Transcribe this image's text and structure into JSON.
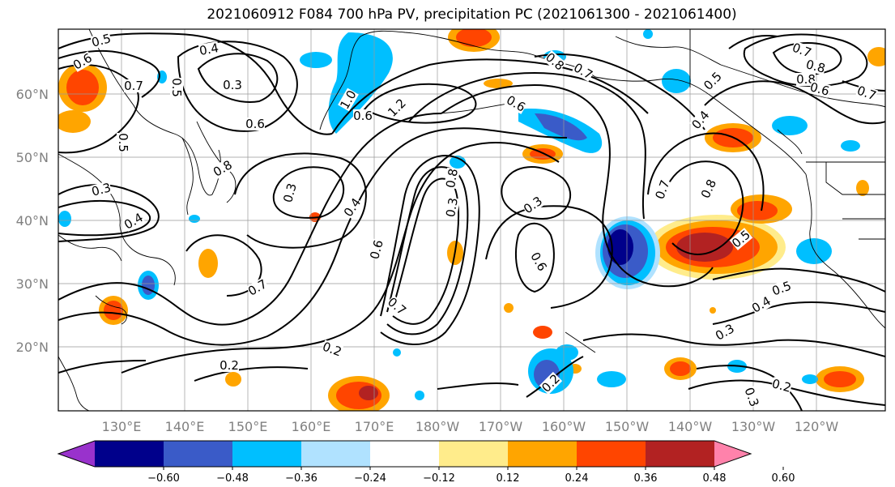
{
  "title": "2021060912 F084 700 hPa PV, precipitation PC (2021061300 - 2021061400)",
  "lat_labels": [
    "60°N",
    "50°N",
    "40°N",
    "30°N",
    "20°N"
  ],
  "lon_labels": [
    "130°E",
    "140°E",
    "150°E",
    "160°E",
    "170°E",
    "180°W",
    "170°W",
    "160°W",
    "150°W",
    "140°W",
    "130°W",
    "120°W"
  ],
  "colorbar": {
    "colors": [
      "#9932CC",
      "#00008B",
      "#3A5BC8",
      "#00BFFF",
      "#B0E2FF",
      "#FFFFFF",
      "#FFEC8B",
      "#FFA500",
      "#FF4500",
      "#B22222",
      "#FF82AB"
    ],
    "tick_labels": [
      "−0.60",
      "−0.48",
      "−0.36",
      "−0.24",
      "−0.12",
      "0.12",
      "0.24",
      "0.36",
      "0.48",
      "0.60"
    ]
  },
  "contour_labels": [
    "0.5",
    "0.6",
    "0.7",
    "0.4",
    "0.3",
    "0.5",
    "0.6",
    "0.5",
    "0.3",
    "0.8",
    "0.4",
    "1.0",
    "1.2",
    "0.6",
    "0.8",
    "0.7",
    "0.3",
    "0.4",
    "0.6",
    "0.7",
    "0.8",
    "0.3",
    "0.3",
    "0.6",
    "0.7",
    "0.2",
    "0.2",
    "0.2",
    "0.3",
    "0.4",
    "0.5",
    "0.2",
    "0.7",
    "0.8",
    "0.5",
    "0.4",
    "0.5",
    "0.8",
    "0.7",
    "0.6",
    "0.8",
    "0.7",
    "0.3",
    "0.6"
  ]
}
